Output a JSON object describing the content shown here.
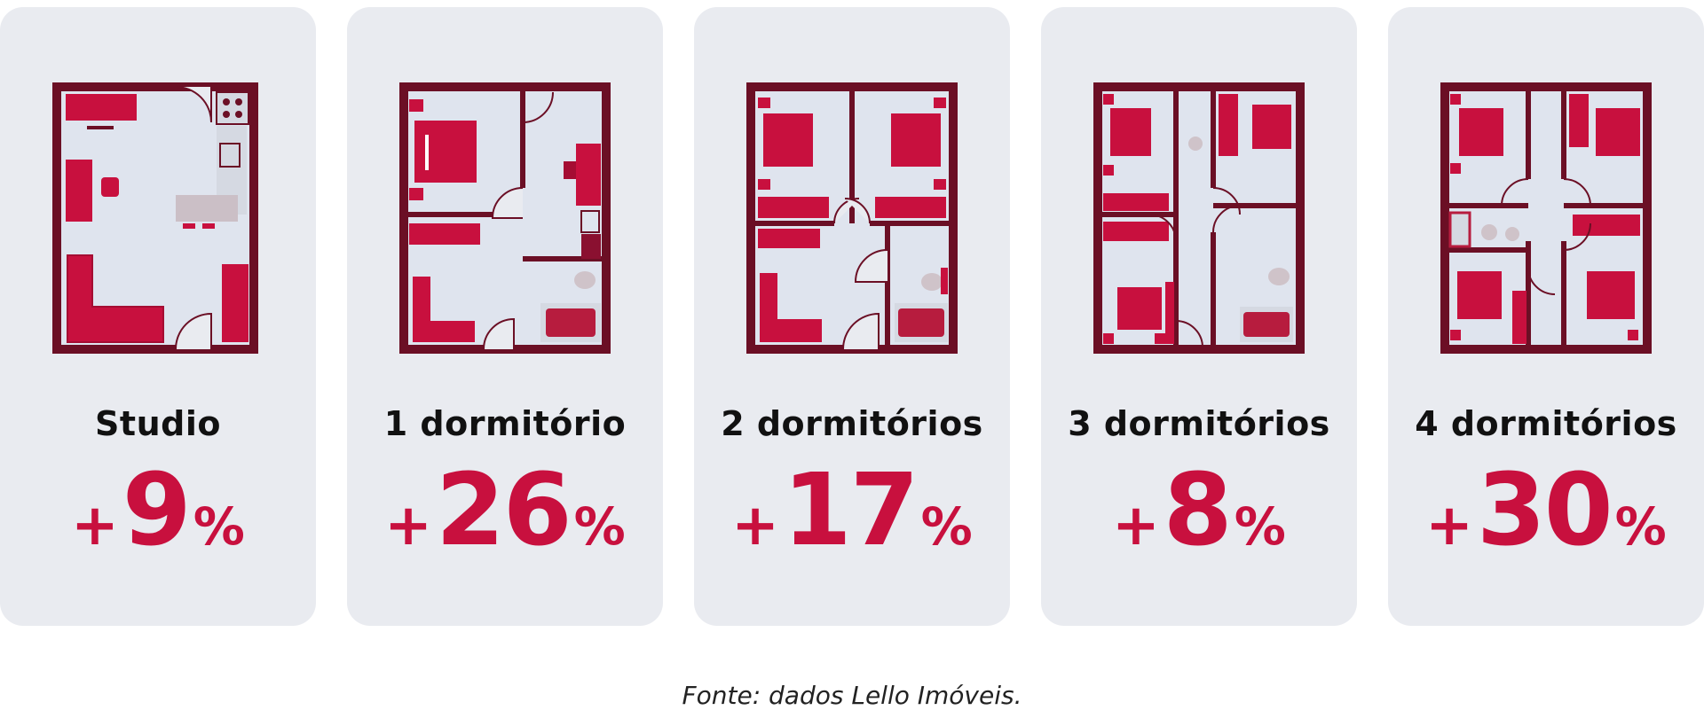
{
  "colors": {
    "accent": "#c8103e",
    "wall": "#6b0f25",
    "card_bg": "#e9ebf0",
    "floor": "#dfe4ee"
  },
  "cards": [
    {
      "label": "Studio",
      "sign": "+",
      "value": "9",
      "unit": "%",
      "icon": "studio-floor-plan-icon"
    },
    {
      "label": "1 dormitório",
      "sign": "+",
      "value": "26",
      "unit": "%",
      "icon": "one-bedroom-floor-plan-icon"
    },
    {
      "label": "2 dormitórios",
      "sign": "+",
      "value": "17",
      "unit": "%",
      "icon": "two-bedroom-floor-plan-icon"
    },
    {
      "label": "3 dormitórios",
      "sign": "+",
      "value": "8",
      "unit": "%",
      "icon": "three-bedroom-floor-plan-icon"
    },
    {
      "label": "4 dormitórios",
      "sign": "+",
      "value": "30",
      "unit": "%",
      "icon": "four-bedroom-floor-plan-icon"
    }
  ],
  "caption": "Fonte: dados Lello Imóveis."
}
